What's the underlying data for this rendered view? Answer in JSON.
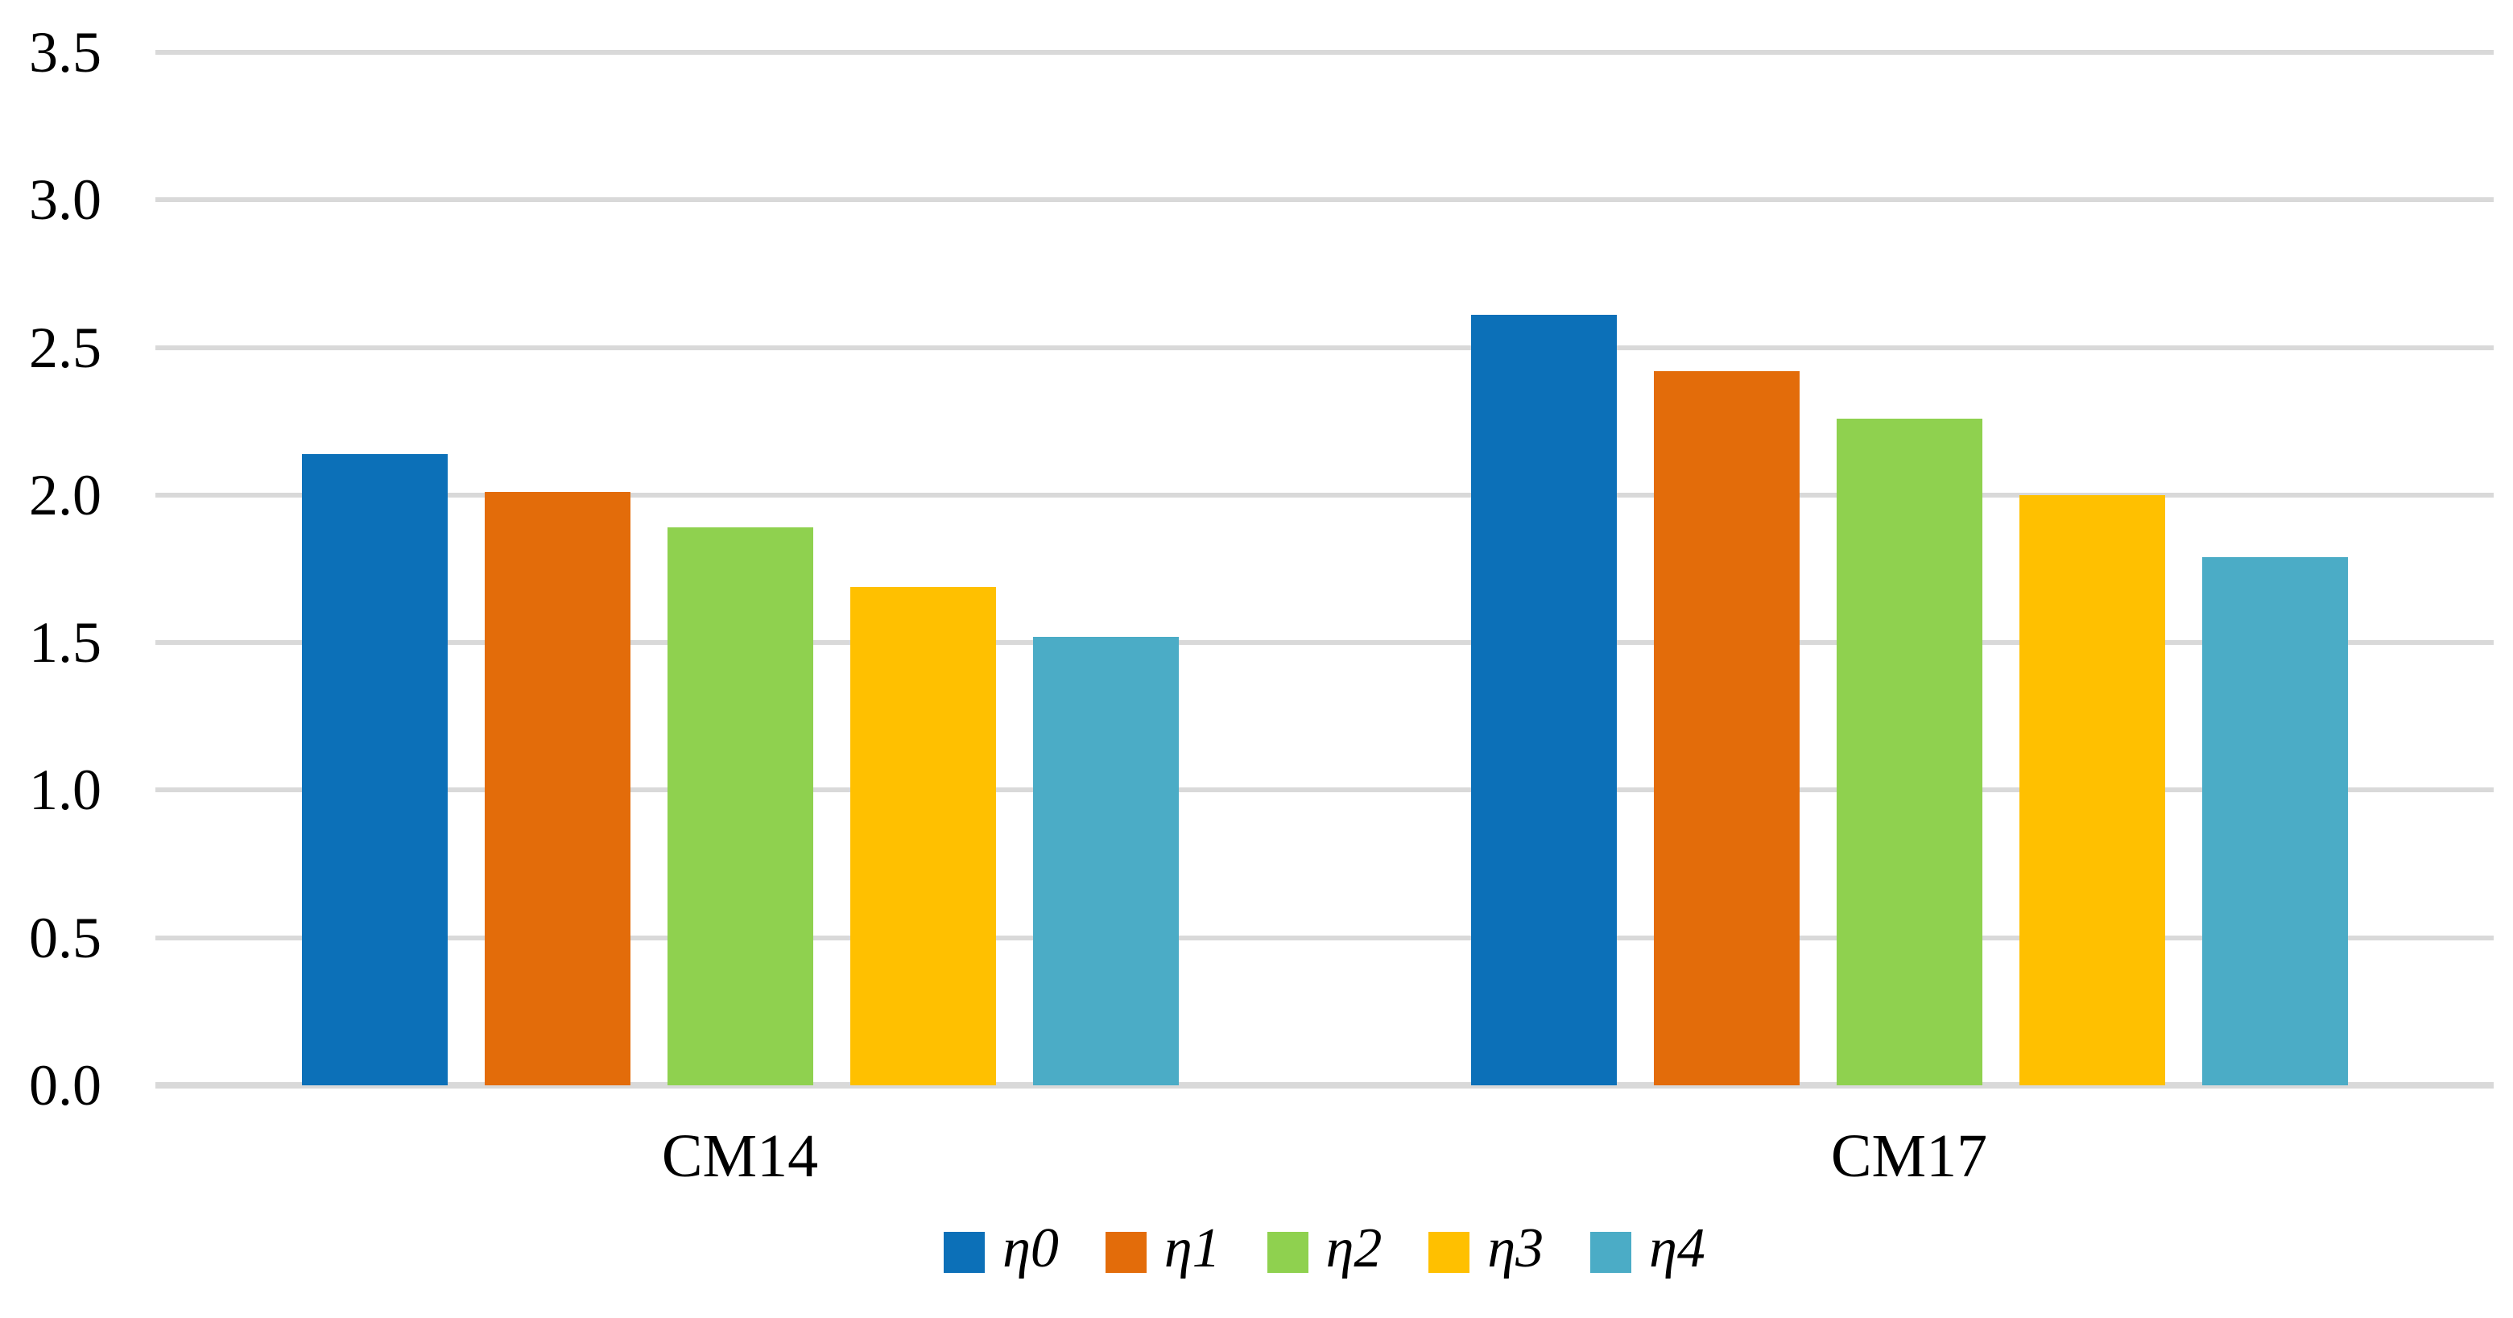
{
  "chart_data": {
    "type": "bar",
    "title": "",
    "xlabel": "",
    "ylabel": "",
    "categories": [
      "CM14",
      "CM17"
    ],
    "series": [
      {
        "name": "η0",
        "color": "#0C70B8",
        "values": [
          2.14,
          2.61
        ]
      },
      {
        "name": "η1",
        "color": "#E36C0A",
        "values": [
          2.01,
          2.42
        ]
      },
      {
        "name": "η2",
        "color": "#8FD14F",
        "values": [
          1.89,
          2.26
        ]
      },
      {
        "name": "η3",
        "color": "#FFC000",
        "values": [
          1.69,
          2.0
        ]
      },
      {
        "name": "η4",
        "color": "#4BACC6",
        "values": [
          1.52,
          1.79
        ]
      }
    ],
    "ylim": [
      0,
      3.5
    ],
    "ytick_step": 0.5,
    "yticks": [
      "3.5",
      "3.0",
      "2.5",
      "2.0",
      "1.5",
      "1.0",
      "0.5",
      "0.0"
    ],
    "grid": true,
    "gridline_color": "#D9D9D9",
    "axis_text_color": "#000000",
    "legend_position": "bottom"
  }
}
